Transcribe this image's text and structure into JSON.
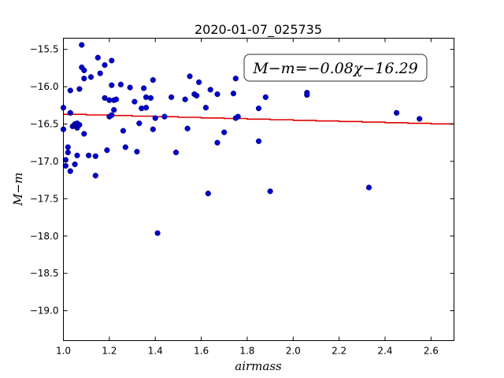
{
  "chart_data": {
    "type": "scatter",
    "title": "2020-01-07_025735",
    "xlabel": "airmass",
    "ylabel": "M−m",
    "annotation": "M−m=−0.08χ−16.29",
    "xlim": [
      1.0,
      2.7
    ],
    "ylim": [
      -19.4,
      -15.35
    ],
    "y_inverted": true,
    "grid": false,
    "x_ticks": [
      1.0,
      1.2,
      1.4,
      1.6,
      1.8,
      2.0,
      2.2,
      2.4,
      2.6
    ],
    "x_tick_labels": [
      "1.0",
      "1.2",
      "1.4",
      "1.6",
      "1.8",
      "2.0",
      "2.2",
      "2.4",
      "2.6"
    ],
    "y_ticks": [
      -15.5,
      -16.0,
      -16.5,
      -17.0,
      -17.5,
      -18.0,
      -18.5,
      -19.0
    ],
    "y_tick_labels": [
      "−15.5",
      "−16.0",
      "−16.5",
      "−17.0",
      "−17.5",
      "−18.0",
      "−18.5",
      "−19.0"
    ],
    "fit": {
      "slope": -0.08,
      "intercept": -16.29,
      "color": "#dd0000"
    },
    "point_color": "#0000cc",
    "points": [
      [
        1.0,
        -16.28
      ],
      [
        1.0,
        -16.57
      ],
      [
        1.01,
        -16.98
      ],
      [
        1.01,
        -17.06
      ],
      [
        1.02,
        -16.88
      ],
      [
        1.02,
        -16.81
      ],
      [
        1.03,
        -17.13
      ],
      [
        1.03,
        -16.35
      ],
      [
        1.03,
        -16.05
      ],
      [
        1.04,
        -16.53
      ],
      [
        1.05,
        -16.52
      ],
      [
        1.05,
        -16.5
      ],
      [
        1.05,
        -17.04
      ],
      [
        1.06,
        -16.55
      ],
      [
        1.06,
        -16.49
      ],
      [
        1.06,
        -16.52
      ],
      [
        1.06,
        -16.92
      ],
      [
        1.07,
        -16.03
      ],
      [
        1.07,
        -16.51
      ],
      [
        1.08,
        -15.44
      ],
      [
        1.08,
        -15.74
      ],
      [
        1.09,
        -15.78
      ],
      [
        1.09,
        -16.63
      ],
      [
        1.09,
        -15.89
      ],
      [
        1.11,
        -16.92
      ],
      [
        1.12,
        -15.87
      ],
      [
        1.14,
        -16.93
      ],
      [
        1.14,
        -17.19
      ],
      [
        1.15,
        -15.61
      ],
      [
        1.16,
        -15.82
      ],
      [
        1.18,
        -16.15
      ],
      [
        1.18,
        -15.71
      ],
      [
        1.19,
        -16.85
      ],
      [
        1.2,
        -16.18
      ],
      [
        1.2,
        -16.4
      ],
      [
        1.21,
        -16.38
      ],
      [
        1.21,
        -15.65
      ],
      [
        1.21,
        -15.98
      ],
      [
        1.22,
        -16.18
      ],
      [
        1.22,
        -16.31
      ],
      [
        1.23,
        -16.17
      ],
      [
        1.25,
        -15.97
      ],
      [
        1.26,
        -16.59
      ],
      [
        1.27,
        -16.81
      ],
      [
        1.29,
        -16.01
      ],
      [
        1.31,
        -16.2
      ],
      [
        1.32,
        -16.87
      ],
      [
        1.33,
        -16.49
      ],
      [
        1.34,
        -16.29
      ],
      [
        1.35,
        -16.02
      ],
      [
        1.36,
        -16.14
      ],
      [
        1.36,
        -16.28
      ],
      [
        1.38,
        -16.15
      ],
      [
        1.39,
        -15.91
      ],
      [
        1.39,
        -16.57
      ],
      [
        1.4,
        -16.42
      ],
      [
        1.41,
        -17.96
      ],
      [
        1.44,
        -16.4
      ],
      [
        1.47,
        -16.14
      ],
      [
        1.49,
        -16.88
      ],
      [
        1.53,
        -16.17
      ],
      [
        1.54,
        -16.56
      ],
      [
        1.55,
        -15.86
      ],
      [
        1.57,
        -16.1
      ],
      [
        1.58,
        -16.12
      ],
      [
        1.59,
        -15.94
      ],
      [
        1.62,
        -16.28
      ],
      [
        1.63,
        -17.43
      ],
      [
        1.64,
        -16.04
      ],
      [
        1.67,
        -16.1
      ],
      [
        1.67,
        -16.75
      ],
      [
        1.7,
        -16.61
      ],
      [
        1.74,
        -16.09
      ],
      [
        1.75,
        -16.42
      ],
      [
        1.75,
        -15.89
      ],
      [
        1.76,
        -16.4
      ],
      [
        1.85,
        -16.29
      ],
      [
        1.85,
        -16.73
      ],
      [
        1.88,
        -16.14
      ],
      [
        1.9,
        -17.4
      ],
      [
        2.06,
        -16.08
      ],
      [
        2.06,
        -16.11
      ],
      [
        2.33,
        -17.35
      ],
      [
        2.45,
        -16.35
      ],
      [
        2.55,
        -16.43
      ]
    ]
  }
}
